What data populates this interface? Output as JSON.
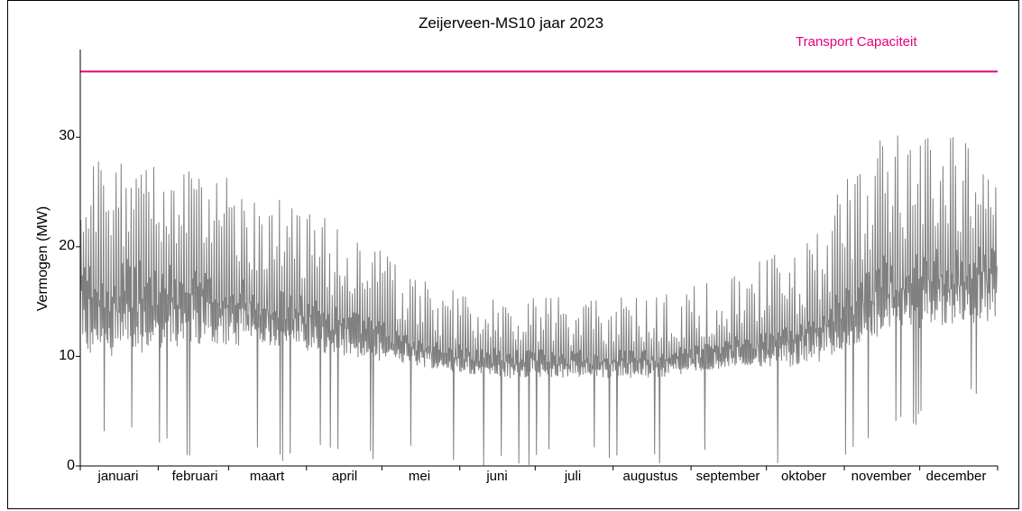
{
  "chart_data": {
    "type": "line",
    "title": "Zeijerveen-MS10 jaar 2023",
    "xlabel": "",
    "ylabel": "Vermogen (MW)",
    "ylim": [
      0,
      38
    ],
    "yticks": [
      0,
      10,
      20,
      30
    ],
    "grid": false,
    "legend": "none",
    "months": [
      "januari",
      "februari",
      "maart",
      "april",
      "mei",
      "juni",
      "juli",
      "augustus",
      "september",
      "oktober",
      "november",
      "december"
    ],
    "transport_capacity": {
      "label": "Transport Capaciteit",
      "value": 36,
      "color": "#e6007e"
    },
    "series": [
      {
        "color": "#808080",
        "monthly_min": [
          2,
          0,
          0,
          0,
          0,
          0,
          0,
          0,
          0,
          0,
          2,
          6
        ],
        "monthly_typical_low": [
          10,
          11,
          11,
          10,
          9,
          8,
          8,
          8,
          9,
          9,
          12,
          13
        ],
        "monthly_typical_high": [
          20,
          19,
          17,
          15,
          12,
          11,
          11,
          11,
          12,
          14,
          20,
          21
        ],
        "monthly_max": [
          28,
          27,
          25.5,
          22,
          17,
          15.5,
          15.5,
          15.5,
          18,
          21.5,
          30.5,
          30.5
        ]
      }
    ]
  }
}
